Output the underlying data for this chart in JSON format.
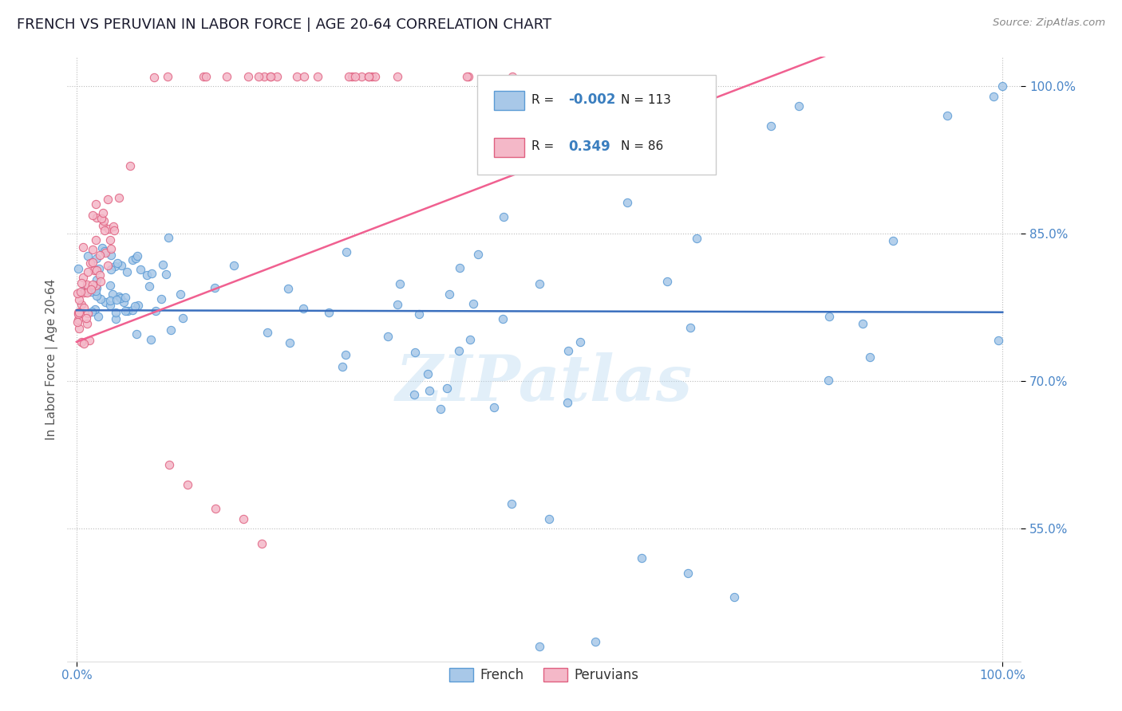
{
  "title": "FRENCH VS PERUVIAN IN LABOR FORCE | AGE 20-64 CORRELATION CHART",
  "source_text": "Source: ZipAtlas.com",
  "ylabel": "In Labor Force | Age 20-64",
  "french_color": "#a8c8e8",
  "french_edge_color": "#5b9bd5",
  "peruvian_color": "#f4b8c8",
  "peruvian_edge_color": "#e06080",
  "french_line_color": "#3a6fbe",
  "peruvian_line_color": "#f06090",
  "legend_R_french": "-0.002",
  "legend_N_french": "113",
  "legend_R_peruvian": "0.349",
  "legend_N_peruvian": "86",
  "watermark": "ZIPatlas",
  "background_color": "#ffffff",
  "title_fontsize": 13,
  "tick_color": "#4a86c8",
  "ylabel_color": "#555555",
  "source_color": "#888888",
  "yticks": [
    0.55,
    0.7,
    0.85,
    1.0
  ],
  "yticklabels": [
    "55.0%",
    "70.0%",
    "85.0%",
    "100.0%"
  ],
  "xlim": [
    -0.01,
    1.02
  ],
  "ylim": [
    0.415,
    1.03
  ]
}
